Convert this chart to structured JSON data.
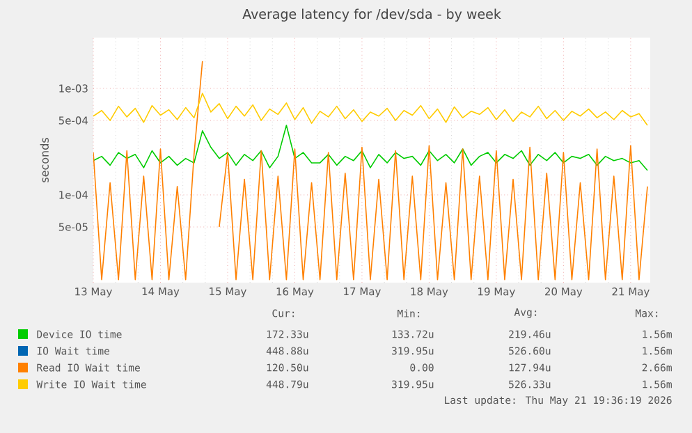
{
  "chart_data": {
    "type": "line",
    "title": "Average latency for /dev/sda - by week",
    "ylabel": "seconds",
    "log": true,
    "grid": true,
    "legend": "bottom",
    "line_style": "solid",
    "marker": "none",
    "xlim": [
      "2026-05-13T00:00",
      "2026-05-21T07:00"
    ],
    "ylim": [
      1.5e-05,
      0.003
    ],
    "xticks": [
      {
        "value": "2026-05-13",
        "label": "13 May"
      },
      {
        "value": "2026-05-14",
        "label": "14 May"
      },
      {
        "value": "2026-05-15",
        "label": "15 May"
      },
      {
        "value": "2026-05-16",
        "label": "16 May"
      },
      {
        "value": "2026-05-17",
        "label": "17 May"
      },
      {
        "value": "2026-05-18",
        "label": "18 May"
      },
      {
        "value": "2026-05-19",
        "label": "19 May"
      },
      {
        "value": "2026-05-20",
        "label": "20 May"
      },
      {
        "value": "2026-05-21",
        "label": "21 May"
      }
    ],
    "yticks": [
      {
        "value": 5e-05,
        "label": "5e-05"
      },
      {
        "value": 0.0001,
        "label": "1e-04"
      },
      {
        "value": 0.0005,
        "label": "5e-04"
      },
      {
        "value": 0.001,
        "label": "1e-03"
      }
    ],
    "x": [
      "2026-05-13T00:00",
      "2026-05-13T03:00",
      "2026-05-13T06:00",
      "2026-05-13T09:00",
      "2026-05-13T12:00",
      "2026-05-13T15:00",
      "2026-05-13T18:00",
      "2026-05-13T21:00",
      "2026-05-14T00:00",
      "2026-05-14T03:00",
      "2026-05-14T06:00",
      "2026-05-14T09:00",
      "2026-05-14T12:00",
      "2026-05-14T15:00",
      "2026-05-14T18:00",
      "2026-05-14T21:00",
      "2026-05-15T00:00",
      "2026-05-15T03:00",
      "2026-05-15T06:00",
      "2026-05-15T09:00",
      "2026-05-15T12:00",
      "2026-05-15T15:00",
      "2026-05-15T18:00",
      "2026-05-15T21:00",
      "2026-05-16T00:00",
      "2026-05-16T03:00",
      "2026-05-16T06:00",
      "2026-05-16T09:00",
      "2026-05-16T12:00",
      "2026-05-16T15:00",
      "2026-05-16T18:00",
      "2026-05-16T21:00",
      "2026-05-17T00:00",
      "2026-05-17T03:00",
      "2026-05-17T06:00",
      "2026-05-17T09:00",
      "2026-05-17T12:00",
      "2026-05-17T15:00",
      "2026-05-17T18:00",
      "2026-05-17T21:00",
      "2026-05-18T00:00",
      "2026-05-18T03:00",
      "2026-05-18T06:00",
      "2026-05-18T09:00",
      "2026-05-18T12:00",
      "2026-05-18T15:00",
      "2026-05-18T18:00",
      "2026-05-18T21:00",
      "2026-05-19T00:00",
      "2026-05-19T03:00",
      "2026-05-19T06:00",
      "2026-05-19T09:00",
      "2026-05-19T12:00",
      "2026-05-19T15:00",
      "2026-05-19T18:00",
      "2026-05-19T21:00",
      "2026-05-20T00:00",
      "2026-05-20T03:00",
      "2026-05-20T06:00",
      "2026-05-20T09:00",
      "2026-05-20T12:00",
      "2026-05-20T15:00",
      "2026-05-20T18:00",
      "2026-05-20T21:00",
      "2026-05-21T00:00",
      "2026-05-21T03:00",
      "2026-05-21T06:00"
    ],
    "series": [
      {
        "name": "Device IO time",
        "color": "#00cc00",
        "values": [
          0.00021,
          0.00023,
          0.00019,
          0.00025,
          0.00022,
          0.00024,
          0.00018,
          0.00026,
          0.0002,
          0.00023,
          0.00019,
          0.00022,
          0.0002,
          0.0004,
          0.00028,
          0.00022,
          0.00025,
          0.00019,
          0.00024,
          0.00021,
          0.00026,
          0.00018,
          0.00023,
          0.00045,
          0.00022,
          0.00025,
          0.0002,
          0.0002,
          0.00024,
          0.00019,
          0.00023,
          0.00021,
          0.00026,
          0.00018,
          0.00024,
          0.0002,
          0.00025,
          0.00022,
          0.00023,
          0.00019,
          0.00026,
          0.00021,
          0.00024,
          0.0002,
          0.00027,
          0.00019,
          0.00023,
          0.00025,
          0.0002,
          0.00024,
          0.00022,
          0.00026,
          0.00019,
          0.00024,
          0.00021,
          0.00025,
          0.0002,
          0.00023,
          0.00022,
          0.00024,
          0.00019,
          0.00023,
          0.00021,
          0.00022,
          0.0002,
          0.00021,
          0.00017
        ]
      },
      {
        "name": "IO Wait time",
        "color": "#0066b3",
        "values": [
          null,
          null,
          null,
          null,
          null,
          null,
          null,
          null,
          null,
          null,
          null,
          null,
          null,
          null,
          null,
          null,
          null,
          null,
          null,
          null,
          null,
          null,
          null,
          null,
          null,
          null,
          null,
          null,
          null,
          null,
          null,
          null,
          null,
          null,
          null,
          null,
          null,
          null,
          null,
          null,
          null,
          null,
          null,
          null,
          null,
          null,
          null,
          null,
          null,
          null,
          null,
          null,
          null,
          null,
          null,
          null,
          null,
          null,
          null,
          null,
          null,
          null,
          null,
          null,
          null,
          null,
          null
        ]
      },
      {
        "name": "Read IO Wait time",
        "color": "#ff8000",
        "values": [
          0.00025,
          1.6e-05,
          0.00013,
          1.6e-05,
          0.00026,
          1.6e-05,
          0.00015,
          1.6e-05,
          0.00027,
          1.6e-05,
          0.00012,
          1.6e-05,
          0.00024,
          0.0018,
          null,
          5e-05,
          0.00025,
          1.6e-05,
          0.00014,
          1.6e-05,
          0.00026,
          1.6e-05,
          0.00015,
          1.6e-05,
          0.00027,
          1.6e-05,
          0.00013,
          1.6e-05,
          0.00025,
          1.6e-05,
          0.00016,
          1.6e-05,
          0.00028,
          1.6e-05,
          0.00014,
          1.6e-05,
          0.00026,
          1.6e-05,
          0.00015,
          1.6e-05,
          0.00029,
          1.6e-05,
          0.00013,
          1.6e-05,
          0.00027,
          1.6e-05,
          0.00015,
          1.6e-05,
          0.00026,
          1.6e-05,
          0.00014,
          1.6e-05,
          0.00028,
          1.6e-05,
          0.00016,
          1.6e-05,
          0.00025,
          1.6e-05,
          0.00013,
          1.6e-05,
          0.00027,
          1.6e-05,
          0.00015,
          1.6e-05,
          0.00029,
          1.6e-05,
          0.00012
        ]
      },
      {
        "name": "Write IO Wait time",
        "color": "#ffcc00",
        "values": [
          0.00055,
          0.00062,
          0.0005,
          0.00068,
          0.00054,
          0.00065,
          0.00048,
          0.00069,
          0.00056,
          0.00063,
          0.00051,
          0.00066,
          0.00053,
          0.0009,
          0.0006,
          0.00072,
          0.00052,
          0.00068,
          0.00055,
          0.0007,
          0.0005,
          0.00064,
          0.00057,
          0.00073,
          0.00051,
          0.00066,
          0.00047,
          0.00061,
          0.00054,
          0.00068,
          0.00052,
          0.00063,
          0.00049,
          0.0006,
          0.00055,
          0.00065,
          0.0005,
          0.00062,
          0.00056,
          0.00069,
          0.00052,
          0.00064,
          0.00048,
          0.00067,
          0.00053,
          0.00061,
          0.00057,
          0.00066,
          0.00051,
          0.00063,
          0.00049,
          0.0006,
          0.00054,
          0.00068,
          0.00052,
          0.00062,
          0.0005,
          0.00061,
          0.00055,
          0.00064,
          0.00053,
          0.0006,
          0.00051,
          0.00062,
          0.00054,
          0.00058,
          0.00045
        ]
      }
    ],
    "annotations": [
      "Cur:",
      "Min:",
      "Avg:",
      "Max:",
      "172.33u",
      "133.72u",
      "219.46u",
      "1.56m",
      "448.88u",
      "319.95u",
      "526.60u",
      "1.56m",
      "120.50u",
      "0.00",
      "127.94u",
      "2.66m",
      "448.79u",
      "319.95u",
      "526.33u",
      "1.56m",
      "Last update: Thu May 21 19:36:19 2026"
    ]
  }
}
